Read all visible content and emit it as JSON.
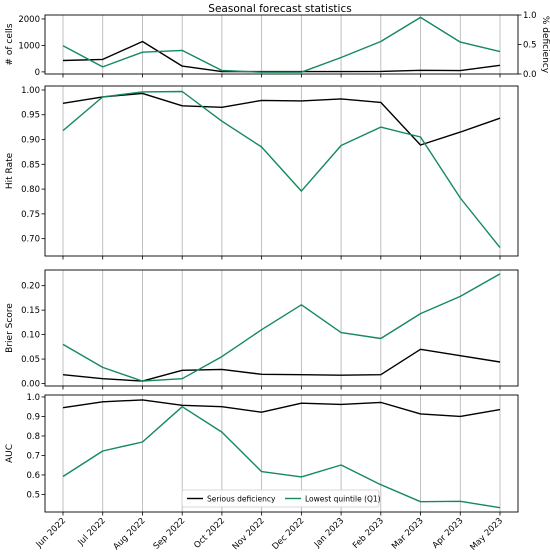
{
  "chart_data": {
    "title": "Seasonal forecast statistics",
    "type": "line",
    "categories": [
      "Jun 2022",
      "Jul 2022",
      "Aug 2022",
      "Sep 2022",
      "Oct 2022",
      "Nov 2022",
      "Dec 2022",
      "Jan 2023",
      "Feb 2023",
      "Mar 2023",
      "Apr 2023",
      "May 2023"
    ],
    "grid": "vertical",
    "colors": {
      "serious": "#000000",
      "q1": "#148a5a"
    },
    "legend": {
      "location": "bottom-center of last panel",
      "entries": [
        {
          "key": "serious",
          "label": "Serious deficiency"
        },
        {
          "key": "q1",
          "label": "Lowest quintile (Q1)"
        }
      ]
    },
    "panels": [
      {
        "id": "cells",
        "ylabel": "# of cells",
        "ylim": [
          -80,
          2150
        ],
        "yticks": [
          "0",
          "1000",
          "2000"
        ],
        "ytick_values": [
          0,
          1000,
          2000
        ],
        "right_axis": {
          "ylabel": "% deficiency",
          "ylim": [
            0,
            1.0
          ],
          "yticks": [
            "0.0",
            "0.5",
            "1.0"
          ],
          "ytick_values": [
            0.0,
            0.5,
            1.0
          ]
        },
        "series": [
          {
            "key": "serious",
            "axis": "left",
            "values": [
              430,
              470,
              1150,
              220,
              10,
              10,
              10,
              10,
              20,
              60,
              50,
              250
            ]
          },
          {
            "key": "q1",
            "axis": "right",
            "values": [
              0.48,
              0.12,
              0.37,
              0.4,
              0.06,
              0.03,
              0.03,
              0.28,
              0.55,
              0.96,
              0.54,
              0.38
            ]
          }
        ]
      },
      {
        "id": "hit-rate",
        "ylabel": "Hit Rate",
        "ylim": [
          0.665,
          1.008
        ],
        "yticks": [
          "0.70",
          "0.75",
          "0.80",
          "0.85",
          "0.90",
          "0.95",
          "1.00"
        ],
        "ytick_values": [
          0.7,
          0.75,
          0.8,
          0.85,
          0.9,
          0.95,
          1.0
        ],
        "series": [
          {
            "key": "serious",
            "values": [
              0.973,
              0.986,
              0.993,
              0.968,
              0.965,
              0.979,
              0.978,
              0.982,
              0.975,
              0.889,
              0.915,
              0.943
            ]
          },
          {
            "key": "q1",
            "values": [
              0.918,
              0.986,
              0.996,
              0.997,
              0.937,
              0.885,
              0.796,
              0.888,
              0.925,
              0.905,
              0.782,
              0.682
            ]
          }
        ]
      },
      {
        "id": "brier",
        "ylabel": "Brier Score",
        "ylim": [
          -0.005,
          0.232
        ],
        "yticks": [
          "0.00",
          "0.05",
          "0.10",
          "0.15",
          "0.20"
        ],
        "ytick_values": [
          0.0,
          0.05,
          0.1,
          0.15,
          0.2
        ],
        "series": [
          {
            "key": "serious",
            "values": [
              0.018,
              0.01,
              0.005,
              0.027,
              0.029,
              0.019,
              0.018,
              0.017,
              0.018,
              0.07,
              0.057,
              0.044
            ]
          },
          {
            "key": "q1",
            "values": [
              0.08,
              0.033,
              0.005,
              0.01,
              0.055,
              0.11,
              0.161,
              0.104,
              0.092,
              0.143,
              0.178,
              0.224
            ]
          }
        ]
      },
      {
        "id": "auc",
        "ylabel": "AUC",
        "ylim": [
          0.41,
          1.01
        ],
        "yticks": [
          "0.5",
          "0.6",
          "0.7",
          "0.8",
          "0.9",
          "1.0"
        ],
        "ytick_values": [
          0.5,
          0.6,
          0.7,
          0.8,
          0.9,
          1.0
        ],
        "series": [
          {
            "key": "serious",
            "values": [
              0.945,
              0.975,
              0.985,
              0.957,
              0.95,
              0.922,
              0.968,
              0.962,
              0.972,
              0.913,
              0.9,
              0.935
            ]
          },
          {
            "key": "q1",
            "values": [
              0.592,
              0.723,
              0.769,
              0.95,
              0.82,
              0.617,
              0.59,
              0.651,
              0.55,
              0.463,
              0.465,
              0.432
            ]
          }
        ]
      }
    ]
  }
}
